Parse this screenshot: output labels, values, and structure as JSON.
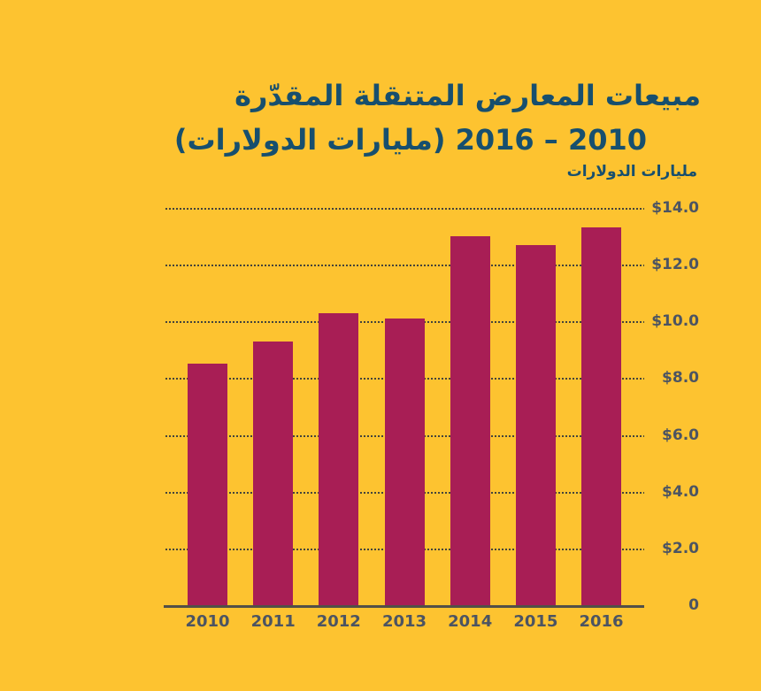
{
  "title": {
    "line1": "مبيعات المعارض المتنقلة المقدّرة",
    "line2": "2010 – 2016 (مليارات الدولارات)"
  },
  "axis_label": "مليارات الدولارات",
  "colors": {
    "background": "#FDC330",
    "bar": "#A81E55",
    "title_text": "#174F6E",
    "axis_text": "#4C5462",
    "gridline": "#45433B",
    "baseline": "#524F47"
  },
  "chart_data": {
    "type": "bar",
    "title": "مبيعات المعارض المتنقلة المقدّرة 2010 – 2016 (مليارات الدولارات)",
    "ylabel": "مليارات الدولارات",
    "categories": [
      "2010",
      "2011",
      "2012",
      "2013",
      "2014",
      "2015",
      "2016"
    ],
    "values": [
      8.5,
      9.3,
      10.3,
      10.1,
      13.0,
      12.7,
      13.3
    ],
    "ylim": [
      0,
      14
    ],
    "ytick_values": [
      0,
      2,
      4,
      6,
      8,
      10,
      12,
      14
    ],
    "ytick_labels": [
      "0",
      "$2.0",
      "$4.0",
      "$6.0",
      "$8.0",
      "$10.0",
      "$12.0",
      "$14.0"
    ],
    "grid": "horizontal-dotted",
    "value_axis_side": "right",
    "legend": "none"
  }
}
